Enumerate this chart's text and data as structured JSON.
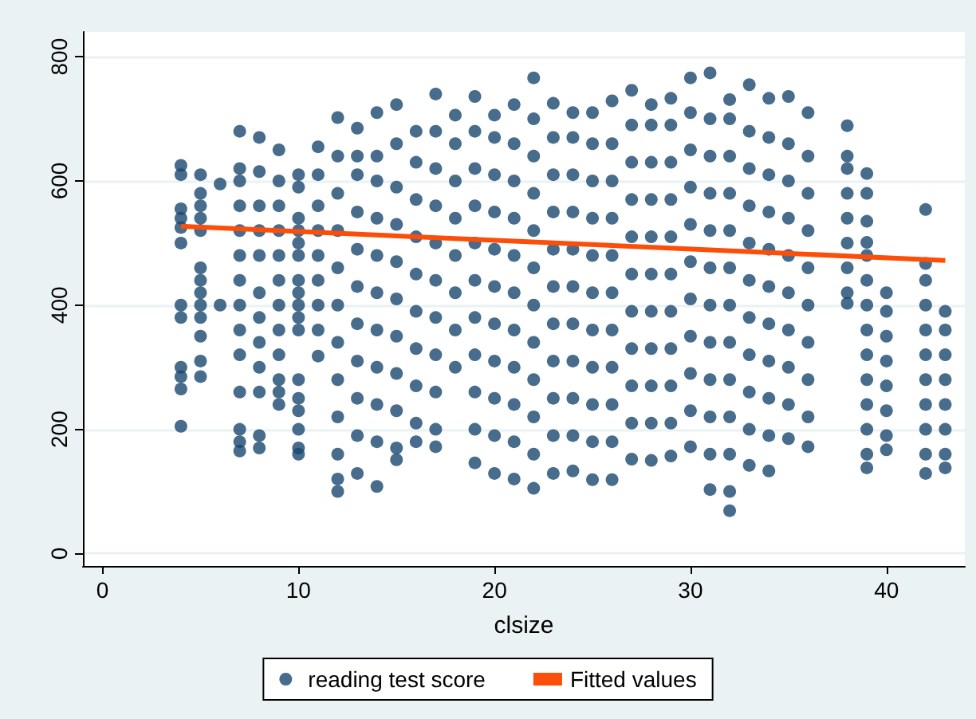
{
  "chart_data": {
    "type": "scatter",
    "xlabel": "clsize",
    "xlim": [
      -1,
      44
    ],
    "xticks": [
      0,
      10,
      20,
      30,
      40
    ],
    "ylim": [
      -20,
      840
    ],
    "yticks": [
      0,
      200,
      400,
      600,
      800
    ],
    "grid": "y",
    "legend": "bottom",
    "series": [
      {
        "name": "reading test score",
        "color": "#1a476f",
        "marker": "circle",
        "x": [
          4,
          4,
          4,
          4,
          4,
          4,
          4,
          4,
          4,
          4,
          4,
          4,
          5,
          5,
          5,
          5,
          5,
          5,
          5,
          5,
          5,
          5,
          5,
          5,
          5,
          6,
          6,
          7,
          7,
          7,
          7,
          7,
          7,
          7,
          7,
          7,
          7,
          7,
          7,
          7,
          7,
          8,
          8,
          8,
          8,
          8,
          8,
          8,
          8,
          8,
          8,
          8,
          8,
          9,
          9,
          9,
          9,
          9,
          9,
          9,
          9,
          9,
          9,
          9,
          9,
          10,
          10,
          10,
          10,
          10,
          10,
          10,
          10,
          10,
          10,
          10,
          10,
          10,
          10,
          10,
          10,
          10,
          11,
          11,
          11,
          11,
          11,
          11,
          11,
          11,
          11,
          12,
          12,
          12,
          12,
          12,
          12,
          12,
          12,
          12,
          12,
          12,
          12,
          13,
          13,
          13,
          13,
          13,
          13,
          13,
          13,
          13,
          13,
          13,
          14,
          14,
          14,
          14,
          14,
          14,
          14,
          14,
          14,
          14,
          14,
          15,
          15,
          15,
          15,
          15,
          15,
          15,
          15,
          15,
          15,
          15,
          16,
          16,
          16,
          16,
          16,
          16,
          16,
          16,
          16,
          16,
          17,
          17,
          17,
          17,
          17,
          17,
          17,
          17,
          17,
          17,
          17,
          18,
          18,
          18,
          18,
          18,
          18,
          18,
          18,
          19,
          19,
          19,
          19,
          19,
          19,
          19,
          19,
          19,
          19,
          19,
          20,
          20,
          20,
          20,
          20,
          20,
          20,
          20,
          20,
          20,
          20,
          21,
          21,
          21,
          21,
          21,
          21,
          21,
          21,
          21,
          21,
          21,
          22,
          22,
          22,
          22,
          22,
          22,
          22,
          22,
          22,
          22,
          22,
          22,
          23,
          23,
          23,
          23,
          23,
          23,
          23,
          23,
          23,
          23,
          23,
          24,
          24,
          24,
          24,
          24,
          24,
          24,
          24,
          24,
          24,
          24,
          25,
          25,
          25,
          25,
          25,
          25,
          25,
          25,
          25,
          25,
          25,
          26,
          26,
          26,
          26,
          26,
          26,
          26,
          26,
          26,
          26,
          26,
          27,
          27,
          27,
          27,
          27,
          27,
          27,
          27,
          27,
          27,
          27,
          28,
          28,
          28,
          28,
          28,
          28,
          28,
          28,
          28,
          28,
          28,
          29,
          29,
          29,
          29,
          29,
          29,
          29,
          29,
          29,
          29,
          29,
          30,
          30,
          30,
          30,
          30,
          30,
          30,
          30,
          30,
          30,
          30,
          31,
          31,
          31,
          31,
          31,
          31,
          31,
          31,
          31,
          31,
          31,
          31,
          32,
          32,
          32,
          32,
          32,
          32,
          32,
          32,
          32,
          32,
          32,
          32,
          32,
          33,
          33,
          33,
          33,
          33,
          33,
          33,
          33,
          33,
          33,
          33,
          34,
          34,
          34,
          34,
          34,
          34,
          34,
          34,
          34,
          34,
          34,
          35,
          35,
          35,
          35,
          35,
          35,
          35,
          35,
          35,
          35,
          36,
          36,
          36,
          36,
          36,
          36,
          36,
          36,
          36,
          36,
          38,
          38,
          38,
          38,
          38,
          38,
          38,
          38,
          38,
          39,
          39,
          39,
          39,
          39,
          39,
          39,
          39,
          39,
          39,
          39,
          39,
          39,
          39,
          40,
          40,
          40,
          40,
          40,
          40,
          40,
          40,
          42,
          42,
          42,
          42,
          42,
          42,
          42,
          42,
          42,
          42,
          42,
          43,
          43,
          43,
          43,
          43,
          43,
          43,
          43
        ],
        "values": [
          205,
          265,
          285,
          300,
          380,
          400,
          500,
          525,
          540,
          555,
          610,
          625,
          285,
          310,
          350,
          380,
          400,
          420,
          440,
          460,
          520,
          540,
          560,
          580,
          610,
          400,
          595,
          165,
          180,
          200,
          260,
          320,
          360,
          400,
          440,
          480,
          520,
          560,
          600,
          620,
          680,
          170,
          190,
          260,
          300,
          340,
          380,
          420,
          480,
          520,
          560,
          615,
          670,
          240,
          260,
          280,
          320,
          360,
          400,
          440,
          480,
          520,
          560,
          600,
          650,
          160,
          170,
          200,
          230,
          250,
          280,
          360,
          380,
          400,
          420,
          440,
          480,
          500,
          520,
          540,
          590,
          610,
          318,
          360,
          400,
          440,
          480,
          520,
          560,
          610,
          655,
          100,
          120,
          160,
          220,
          280,
          340,
          400,
          460,
          520,
          580,
          640,
          702,
          129,
          190,
          250,
          310,
          370,
          430,
          490,
          550,
          610,
          640,
          685,
          108,
          180,
          240,
          300,
          360,
          420,
          480,
          540,
          600,
          640,
          710,
          151,
          170,
          230,
          290,
          350,
          410,
          470,
          530,
          590,
          660,
          723,
          180,
          210,
          270,
          330,
          390,
          450,
          510,
          570,
          630,
          680,
          172,
          200,
          260,
          320,
          380,
          440,
          500,
          560,
          620,
          680,
          740,
          300,
          360,
          420,
          480,
          540,
          600,
          660,
          706,
          146,
          200,
          260,
          320,
          380,
          440,
          500,
          560,
          620,
          680,
          736,
          129,
          190,
          250,
          310,
          370,
          430,
          490,
          550,
          610,
          670,
          706,
          120,
          180,
          240,
          300,
          360,
          420,
          480,
          540,
          600,
          660,
          723,
          105,
          160,
          220,
          280,
          340,
          400,
          460,
          520,
          580,
          640,
          700,
          766,
          129,
          190,
          250,
          310,
          370,
          430,
          490,
          550,
          610,
          670,
          725,
          133,
          190,
          250,
          310,
          370,
          430,
          490,
          550,
          610,
          670,
          710,
          119,
          180,
          240,
          300,
          360,
          420,
          480,
          540,
          600,
          660,
          710,
          119,
          180,
          240,
          300,
          360,
          420,
          480,
          540,
          600,
          660,
          729,
          152,
          210,
          270,
          330,
          390,
          450,
          510,
          570,
          630,
          690,
          746,
          150,
          210,
          270,
          330,
          390,
          450,
          510,
          570,
          630,
          690,
          723,
          157,
          210,
          270,
          330,
          390,
          450,
          510,
          570,
          630,
          690,
          733,
          172,
          230,
          290,
          350,
          410,
          470,
          530,
          590,
          650,
          710,
          766,
          103,
          160,
          220,
          280,
          340,
          400,
          460,
          520,
          580,
          640,
          700,
          774,
          69,
          100,
          160,
          220,
          280,
          340,
          400,
          460,
          520,
          580,
          640,
          700,
          731,
          142,
          200,
          260,
          320,
          380,
          440,
          500,
          560,
          620,
          680,
          755,
          133,
          190,
          250,
          310,
          370,
          430,
          490,
          550,
          610,
          670,
          733,
          185,
          240,
          300,
          360,
          420,
          480,
          540,
          600,
          660,
          736,
          172,
          220,
          280,
          340,
          400,
          460,
          520,
          580,
          640,
          710,
          403,
          420,
          460,
          500,
          540,
          580,
          620,
          640,
          689,
          138,
          160,
          200,
          240,
          280,
          320,
          360,
          400,
          440,
          480,
          501,
          535,
          580,
          612,
          167,
          190,
          230,
          270,
          310,
          350,
          390,
          420,
          129,
          160,
          200,
          240,
          280,
          320,
          360,
          400,
          440,
          467,
          554,
          138,
          160,
          200,
          240,
          280,
          320,
          360,
          390
        ]
      },
      {
        "name": "Fitted values",
        "color": "#fc4e08",
        "type": "line",
        "marker": "none",
        "x": [
          4,
          43
        ],
        "values": [
          527,
          472
        ]
      }
    ]
  }
}
